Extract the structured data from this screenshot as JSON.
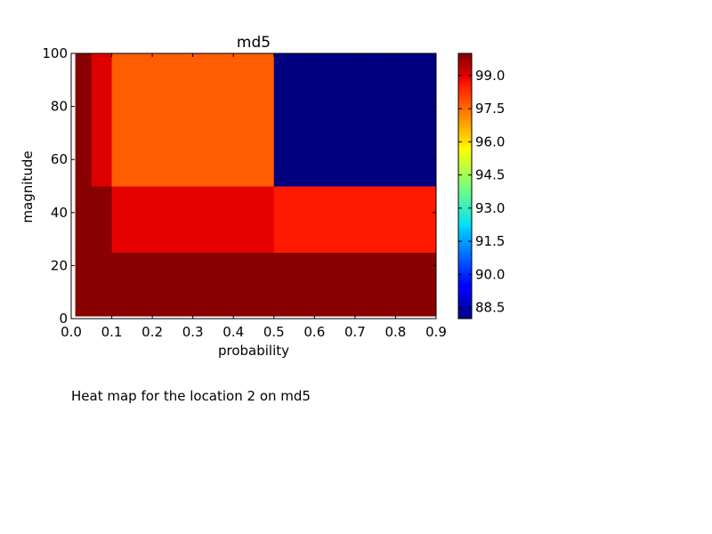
{
  "caption": "Heat map for the location 2 on md5",
  "chart_data": {
    "type": "heatmap",
    "title": "md5",
    "xlabel": "probability",
    "ylabel": "magnitude",
    "xlim": [
      0.0,
      0.9
    ],
    "ylim": [
      0,
      100
    ],
    "xticks": [
      "0.0",
      "0.1",
      "0.2",
      "0.3",
      "0.4",
      "0.5",
      "0.6",
      "0.7",
      "0.8",
      "0.9"
    ],
    "xtick_values": [
      0.0,
      0.1,
      0.2,
      0.3,
      0.4,
      0.5,
      0.6,
      0.7,
      0.8,
      0.9
    ],
    "yticks": [
      "0",
      "20",
      "40",
      "60",
      "80",
      "100"
    ],
    "ytick_values": [
      0,
      20,
      40,
      60,
      80,
      100
    ],
    "x_edges": [
      0.01,
      0.05,
      0.1,
      0.5,
      0.9
    ],
    "y_edges": [
      1,
      25,
      50,
      100
    ],
    "values": [
      [
        99.9,
        99.9,
        99.9,
        99.9
      ],
      [
        99.9,
        99.9,
        98.8,
        98.2
      ],
      [
        99.9,
        98.9,
        97.4,
        88.0
      ]
    ],
    "colorbar": {
      "colormap": "jet",
      "vmin": 88.0,
      "vmax": 100.0,
      "ticks": [
        "88.5",
        "90.0",
        "91.5",
        "93.0",
        "94.5",
        "96.0",
        "97.5",
        "99.0"
      ],
      "tick_values": [
        88.5,
        90.0,
        91.5,
        93.0,
        94.5,
        96.0,
        97.5,
        99.0
      ]
    },
    "grid": false
  }
}
